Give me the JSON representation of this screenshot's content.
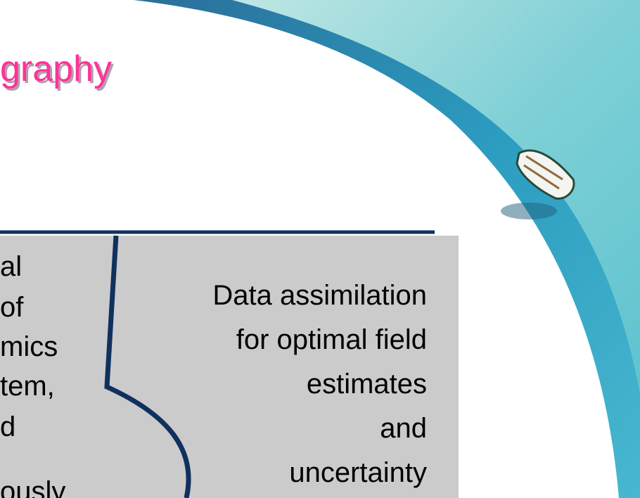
{
  "header": {
    "title": "graphy"
  },
  "left_box": {
    "lines": [
      "al",
      "of",
      "mics",
      "tem,",
      "d",
      "ously"
    ]
  },
  "right_box": {
    "lines": [
      "Data assimilation",
      "for optimal field",
      "estimates",
      "and",
      "uncertainty"
    ]
  }
}
